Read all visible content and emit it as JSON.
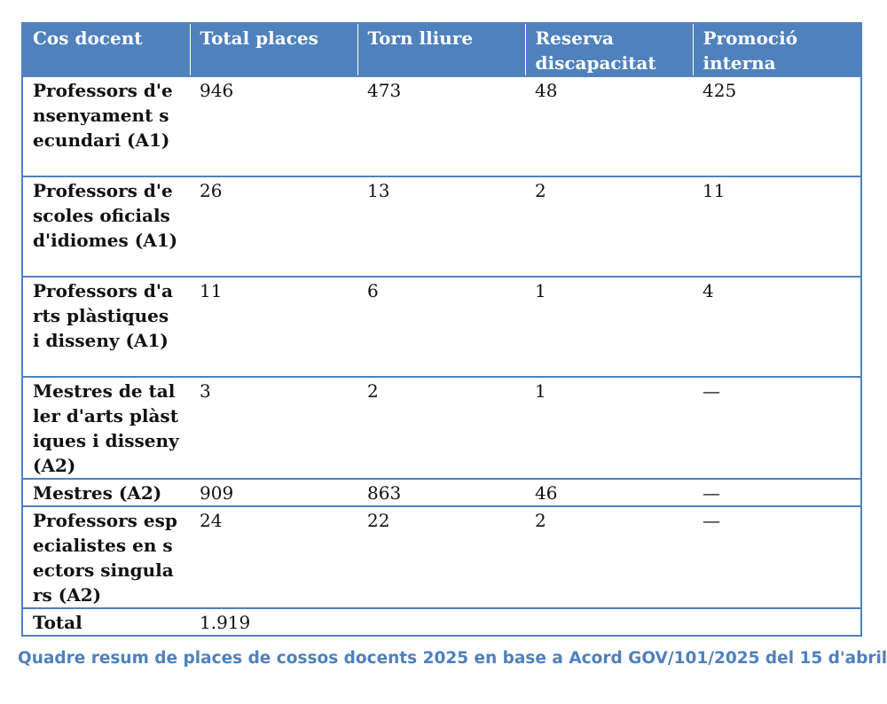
{
  "table": {
    "headers": [
      "Cos docent",
      "Total places",
      "Torn lliure",
      "Reserva discapacitat",
      "Promoció interna"
    ],
    "rows": [
      [
        "Professors d'ensenyament secundari (A1)",
        "946",
        "473",
        "48",
        "425"
      ],
      [
        "Professors d'escoles oficials d'idiomes (A1)",
        "26",
        "13",
        "2",
        "11"
      ],
      [
        "Professors d'arts plàstiques i disseny (A1)",
        "11",
        "6",
        "1",
        "4"
      ],
      [
        "Mestres de taller d'arts plàstiques i disseny (A2)",
        "3",
        "2",
        "1",
        "—"
      ],
      [
        "Mestres (A2)",
        "909",
        "863",
        "46",
        "—"
      ],
      [
        "Professors especialistes en sectors singulars (A2)",
        "24",
        "22",
        "2",
        "—"
      ],
      [
        "Total",
        "1.919",
        "",
        "",
        ""
      ]
    ]
  },
  "caption": "Quadre resum de places de cossos docents 2025 en base a Acord GOV/101/2025 del 15 d'abril",
  "colors": {
    "header_bg": "#4f81bd",
    "border": "#4f81bd",
    "caption": "#4f81bd"
  }
}
